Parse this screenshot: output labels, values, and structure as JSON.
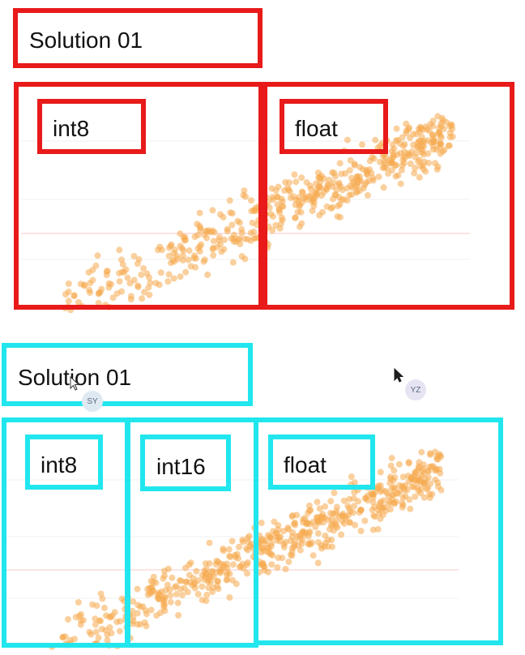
{
  "top_section": {
    "title": "Solution 01",
    "labels": [
      "int8",
      "float"
    ]
  },
  "bottom_section": {
    "title": "Solution 01",
    "labels": [
      "int8",
      "int16",
      "float"
    ]
  },
  "collaborators": [
    {
      "initials": "SY"
    },
    {
      "initials": "YZ"
    }
  ],
  "colors": {
    "top_accent": "#e81a1a",
    "bottom_accent": "#21e6ee",
    "point": "#f6a94f"
  }
}
